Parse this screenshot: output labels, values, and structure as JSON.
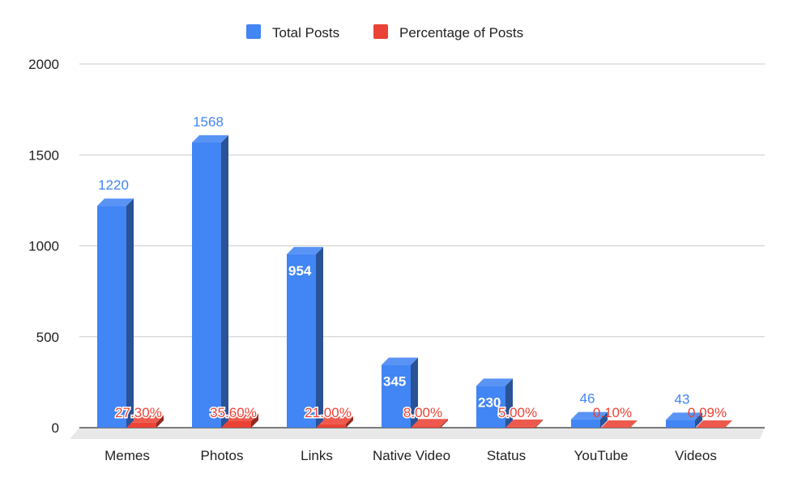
{
  "chart_data": {
    "type": "bar",
    "categories": [
      "Memes",
      "Photos",
      "Links",
      "Native Video",
      "Status",
      "YouTube",
      "Videos"
    ],
    "series": [
      {
        "name": "Total Posts",
        "values": [
          1220,
          1568,
          954,
          345,
          230,
          46,
          43
        ],
        "labels": [
          "1220",
          "1568",
          "954",
          "345",
          "230",
          "46",
          "43"
        ],
        "color": "#4285f4"
      },
      {
        "name": "Percentage of Posts",
        "values": [
          27.3,
          35.6,
          21.0,
          8.0,
          5.0,
          0.1,
          0.09
        ],
        "labels": [
          "27.30%",
          "35.60%",
          "21.00%",
          "8.00%",
          "5.00%",
          "0.10%",
          "0.09%"
        ],
        "color": "#ea4335"
      }
    ],
    "yticks": [
      "0",
      "500",
      "1000",
      "1500",
      "2000"
    ],
    "ylim": [
      0,
      2000
    ],
    "grid": true,
    "legend": "top-center",
    "style": "3d"
  }
}
